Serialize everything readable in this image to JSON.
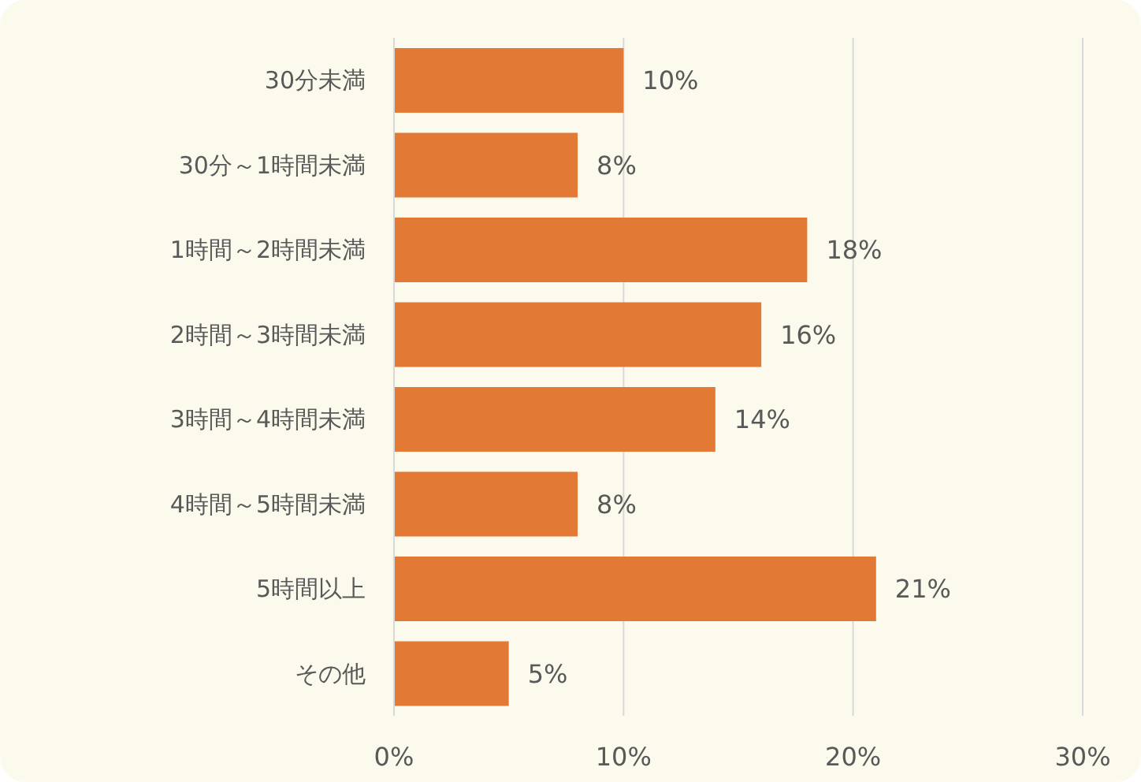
{
  "chart_data": {
    "type": "bar",
    "orientation": "horizontal",
    "categories": [
      "30分未満",
      "30分～1時間未満",
      "1時間～2時間未満",
      "2時間～3時間未満",
      "3時間～4時間未満",
      "4時間～5時間未満",
      "5時間以上",
      "その他"
    ],
    "values": [
      10,
      8,
      18,
      16,
      14,
      8,
      21,
      5
    ],
    "value_labels": [
      "10%",
      "8%",
      "18%",
      "16%",
      "14%",
      "8%",
      "21%",
      "5%"
    ],
    "color": "#e27934",
    "xlim": [
      0,
      30
    ],
    "xticks": [
      {
        "value": 0,
        "label": "0%"
      },
      {
        "value": 10,
        "label": "10%"
      },
      {
        "value": 20,
        "label": "20%"
      },
      {
        "value": 30,
        "label": "30%"
      }
    ],
    "grid": "x"
  }
}
